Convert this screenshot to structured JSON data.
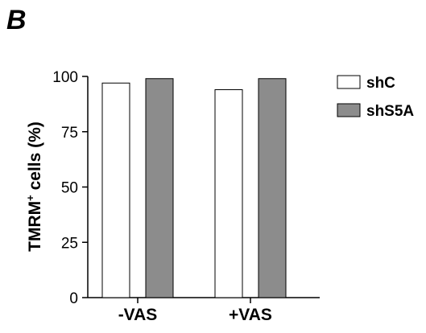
{
  "panel_label": "B",
  "chart_data": {
    "type": "bar",
    "categories": [
      "-VAS",
      "+VAS"
    ],
    "series": [
      {
        "name": "shC",
        "values": [
          97,
          94
        ],
        "color": "#ffffff"
      },
      {
        "name": "shS5A",
        "values": [
          99,
          99
        ],
        "color": "#8c8c8c"
      }
    ],
    "ylabel_main": "TMRM",
    "ylabel_sup": "+",
    "ylabel_rest": " cells (%)",
    "ylim": [
      0,
      100
    ],
    "yticks": [
      "0",
      "25",
      "50",
      "75",
      "100"
    ],
    "legend_position": "top-right",
    "grid": false
  }
}
